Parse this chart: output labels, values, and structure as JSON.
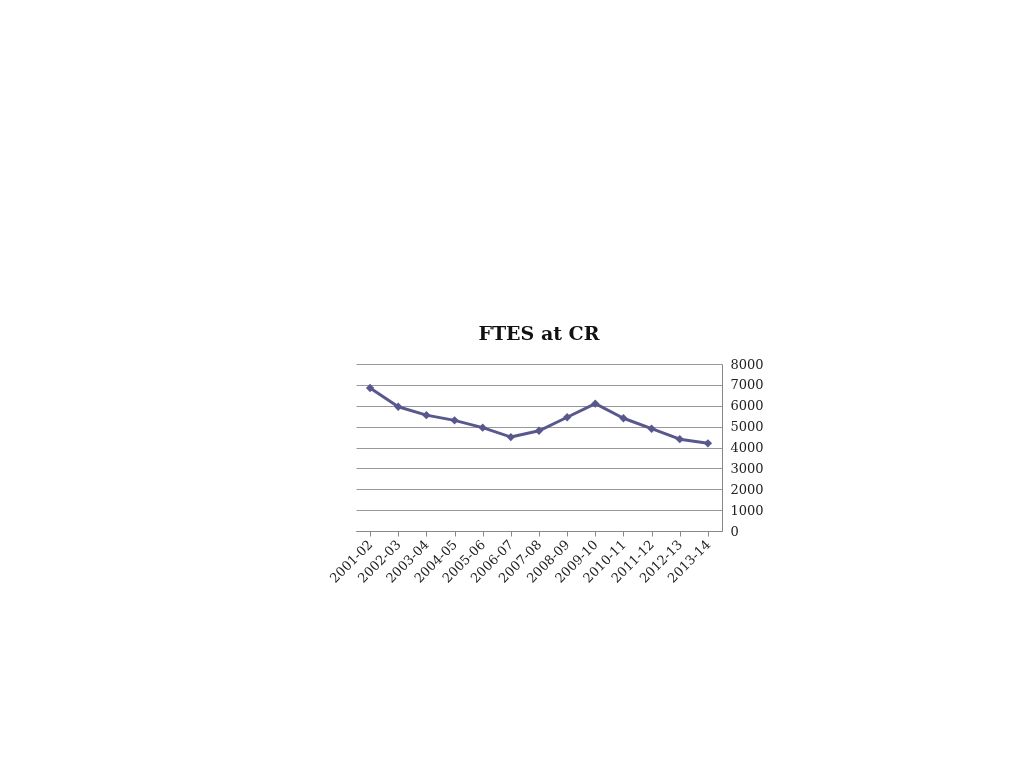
{
  "chart_data": {
    "type": "line",
    "title": "FTES at CR",
    "categories": [
      "2001-02",
      "2002-03",
      "2003-04",
      "2004-05",
      "2005-06",
      "2006-07",
      "2007-08",
      "2008-09",
      "2009-10",
      "2010-11",
      "2011-12",
      "2012-13",
      "2013-14"
    ],
    "series": [
      {
        "color": "#58588f",
        "values": [
          6850,
          5950,
          5550,
          5300,
          4950,
          4500,
          4800,
          5450,
          6100,
          5400,
          4900,
          4400,
          4200
        ]
      }
    ],
    "ylim": [
      0,
      8000
    ],
    "yticks": [
      0,
      1000,
      2000,
      3000,
      4000,
      5000,
      6000,
      7000,
      8000
    ],
    "grid": "y",
    "marker": "diamond",
    "line_style": "solid",
    "legend": false
  }
}
